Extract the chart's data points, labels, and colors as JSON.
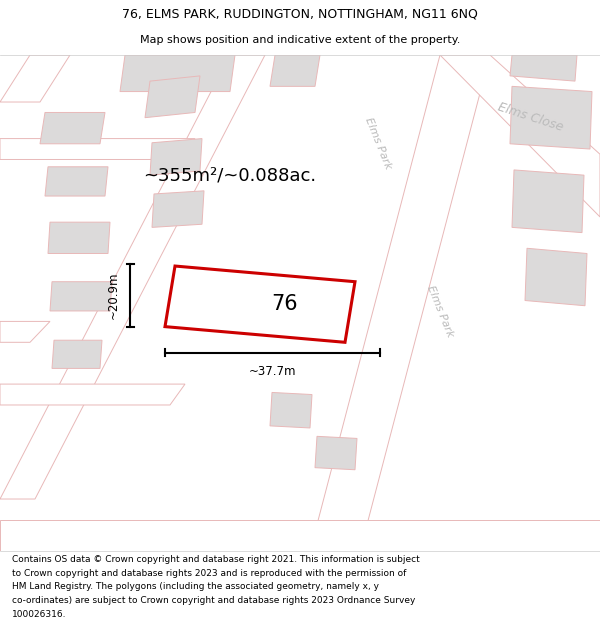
{
  "title_line1": "76, ELMS PARK, RUDDINGTON, NOTTINGHAM, NG11 6NQ",
  "title_line2": "Map shows position and indicative extent of the property.",
  "footer_lines": [
    "Contains OS data © Crown copyright and database right 2021. This information is subject",
    "to Crown copyright and database rights 2023 and is reproduced with the permission of",
    "HM Land Registry. The polygons (including the associated geometry, namely x, y",
    "co-ordinates) are subject to Crown copyright and database rights 2023 Ordnance Survey",
    "100026316."
  ],
  "area_label": "~355m²/~0.088ac.",
  "property_label": "76",
  "width_label": "~37.7m",
  "height_label": "~20.9m",
  "road_label1": "Elms Park",
  "road_label2": "Elms Close",
  "road_label3": "Elms Park",
  "map_bg": "#faf8f8",
  "road_fill": "#f5efef",
  "road_edge": "#e8b8b8",
  "building_fill": "#dcdada",
  "building_edge": "#e8b8b8",
  "property_edge": "#cc0000",
  "property_fill": "#ffffff",
  "dim_line_color": "#000000",
  "label_color": "#bbbbbb"
}
